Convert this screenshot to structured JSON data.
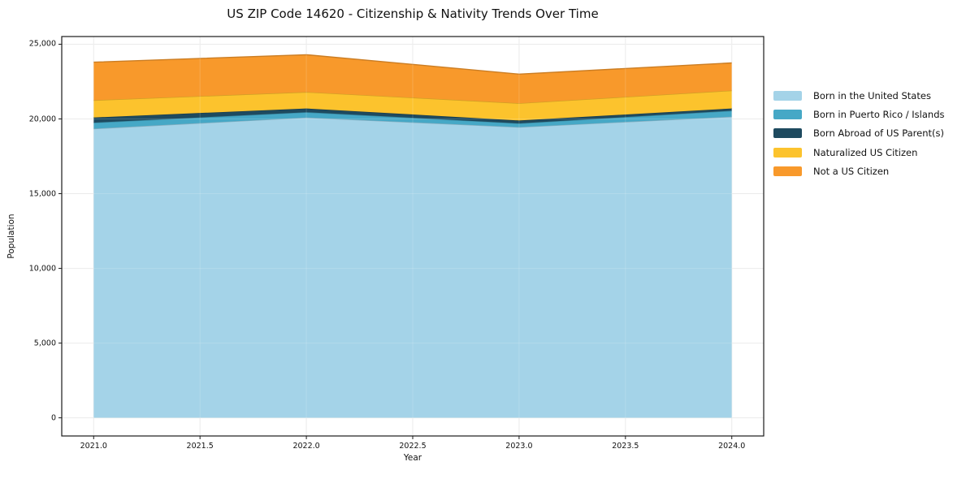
{
  "title": "US ZIP Code 14620 - Citizenship & Nativity Trends Over Time",
  "chart_data": {
    "type": "area",
    "stacked": true,
    "title": "US ZIP Code 14620 - Citizenship & Nativity Trends Over Time",
    "xlabel": "Year",
    "ylabel": "Population",
    "x": [
      2021,
      2022,
      2023,
      2024
    ],
    "x_ticks": [
      2021.0,
      2021.5,
      2022.0,
      2022.5,
      2023.0,
      2023.5,
      2024.0
    ],
    "x_tick_labels": [
      "2021.0",
      "2021.5",
      "2022.0",
      "2022.5",
      "2023.0",
      "2023.5",
      "2024.0"
    ],
    "y_ticks": [
      0,
      5000,
      10000,
      15000,
      20000,
      25000
    ],
    "y_tick_labels": [
      "0",
      "5,000",
      "10,000",
      "15,000",
      "20,000",
      "25,000"
    ],
    "xlim": [
      2020.85,
      2024.15
    ],
    "ylim": [
      -1215,
      25515
    ],
    "grid": true,
    "legend_position": "right-outside",
    "series": [
      {
        "name": "Born in the United States",
        "color": "#a4d3e8",
        "values": [
          19350,
          20100,
          19450,
          20150
        ]
      },
      {
        "name": "Born in Puerto Rico / Islands",
        "color": "#46a8c6",
        "values": [
          400,
          350,
          250,
          400
        ]
      },
      {
        "name": "Born Abroad of US Parent(s)",
        "color": "#1e4a5f",
        "values": [
          350,
          250,
          200,
          150
        ]
      },
      {
        "name": "Naturalized US Citizen",
        "color": "#fcc32d",
        "values": [
          1150,
          1100,
          1150,
          1200
        ]
      },
      {
        "name": "Not a US Citizen",
        "color": "#f8992b",
        "values": [
          2550,
          2500,
          1950,
          1850
        ]
      }
    ],
    "stack_totals": [
      23800,
      24300,
      23000,
      23750
    ],
    "colors": {
      "frame": "#1a1a1a",
      "gridline": "#e8e8e8",
      "text": "#111111",
      "background": "#ffffff"
    }
  }
}
